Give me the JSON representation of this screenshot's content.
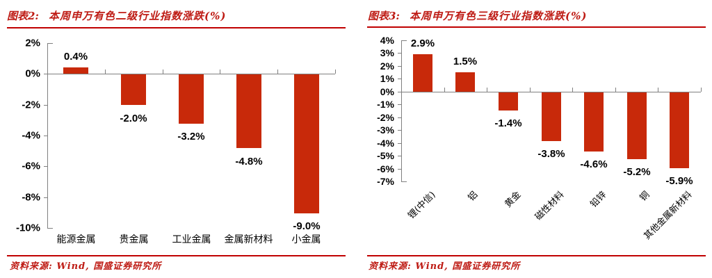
{
  "figures": [
    {
      "label": "图表2:",
      "title": "本周申万有色二级行业指数涨跌(%)",
      "source": "资料来源: Wind, 国盛证券研究所"
    },
    {
      "label": "图表3:",
      "title": "本周申万有色三级行业指数涨跌(%)",
      "source": "资料来源: Wind, 国盛证券研究所"
    }
  ],
  "colors": {
    "bar": "#C8290A",
    "accent_red": "#C00000",
    "title_red": "#BE1B14",
    "axis_gray": "#7f7f7f",
    "text_black": "#000000"
  },
  "chart_data": [
    {
      "type": "bar",
      "title": "本周申万有色二级行业指数涨跌(%)",
      "categories": [
        "能源金属",
        "贵金属",
        "工业金属",
        "金属新材料",
        "小金属"
      ],
      "values": [
        0.4,
        -2.0,
        -3.2,
        -4.8,
        -9.0
      ],
      "data_labels": [
        "0.4%",
        "-2.0%",
        "-3.2%",
        "-4.8%",
        "-9.0%"
      ],
      "xlabel": "",
      "ylabel": "",
      "ylim": [
        -10,
        2
      ],
      "ytick_step": 2,
      "ytick_labels": [
        "2%",
        "0%",
        "-2%",
        "-4%",
        "-6%",
        "-8%",
        "-10%"
      ],
      "grid": false,
      "legend": false,
      "xlabel_rotation": 0
    },
    {
      "type": "bar",
      "title": "本周申万有色三级行业指数涨跌(%)",
      "categories": [
        "锂(中信)",
        "铝",
        "黄金",
        "磁性材料",
        "铅锌",
        "铜",
        "其他金属新材料"
      ],
      "values": [
        2.9,
        1.5,
        -1.4,
        -3.8,
        -4.6,
        -5.2,
        -5.9
      ],
      "data_labels": [
        "2.9%",
        "1.5%",
        "-1.4%",
        "-3.8%",
        "-4.6%",
        "-5.2%",
        "-5.9%"
      ],
      "xlabel": "",
      "ylabel": "",
      "ylim": [
        -7,
        4
      ],
      "ytick_step": 1,
      "ytick_labels": [
        "4%",
        "3%",
        "2%",
        "1%",
        "0%",
        "-1%",
        "-2%",
        "-3%",
        "-4%",
        "-5%",
        "-6%",
        "-7%"
      ],
      "grid": false,
      "legend": false,
      "xlabel_rotation": 45
    }
  ]
}
